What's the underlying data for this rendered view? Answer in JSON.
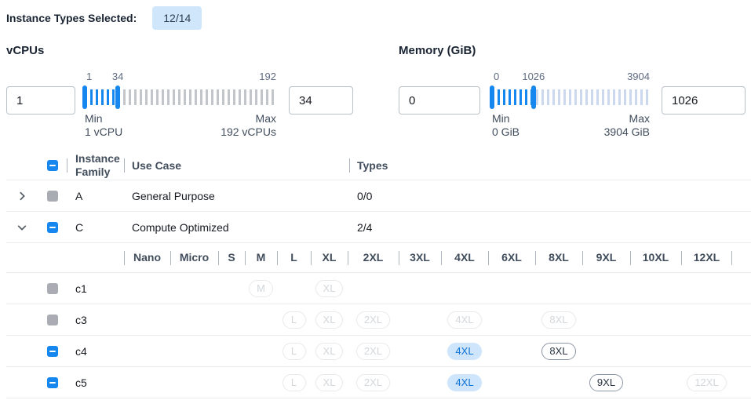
{
  "colors": {
    "accent": "#1787f0",
    "selected-badge-bg": "#cfe5fb",
    "selected-badge-text": "#0d72d3",
    "count-badge-bg": "#cfe6fb",
    "disabled-checkbox": "#a9adb3"
  },
  "topbar": {
    "label": "Instance Types Selected:",
    "count_badge": "12/14"
  },
  "filters": {
    "vcpus": {
      "title": "vCPUs",
      "range": {
        "min": 1,
        "max": 192
      },
      "values": {
        "from": 1,
        "to": 34
      },
      "min_label": "Min",
      "min_sublabel": "1 vCPU",
      "max_label": "Max",
      "max_sublabel": "192 vCPUs"
    },
    "memory": {
      "title": "Memory (GiB)",
      "range": {
        "min": 0,
        "max": 3904
      },
      "values": {
        "from": 0,
        "to": 1026
      },
      "min_label": "Min",
      "min_sublabel": "0 GiB",
      "max_label": "Max",
      "max_sublabel": "3904 GiB"
    }
  },
  "table": {
    "header_checkbox_state": "indeterminate",
    "columns": [
      "Instance Family",
      "Use Case",
      "Types"
    ],
    "size_columns": [
      "Nano",
      "Micro",
      "S",
      "M",
      "L",
      "XL",
      "2XL",
      "3XL",
      "4XL",
      "6XL",
      "8XL",
      "9XL",
      "10XL",
      "12XL"
    ],
    "family_rows": [
      {
        "family": "A",
        "use_case": "General Purpose",
        "types_count": "0/0",
        "checkbox_state": "disabled",
        "expanded": false
      },
      {
        "family": "C",
        "use_case": "Compute Optimized",
        "types_count": "2/4",
        "checkbox_state": "indeterminate",
        "expanded": true
      }
    ],
    "type_rows": [
      {
        "name": "c1",
        "checkbox_state": "disabled",
        "badges": [
          {
            "size": "M",
            "state": "disabled"
          },
          {
            "size": "XL",
            "state": "disabled"
          }
        ]
      },
      {
        "name": "c3",
        "checkbox_state": "disabled",
        "badges": [
          {
            "size": "L",
            "state": "disabled"
          },
          {
            "size": "XL",
            "state": "disabled"
          },
          {
            "size": "2XL",
            "state": "disabled"
          },
          {
            "size": "4XL",
            "state": "disabled"
          },
          {
            "size": "8XL",
            "state": "disabled"
          }
        ]
      },
      {
        "name": "c4",
        "checkbox_state": "indeterminate",
        "badges": [
          {
            "size": "L",
            "state": "disabled"
          },
          {
            "size": "XL",
            "state": "disabled"
          },
          {
            "size": "2XL",
            "state": "disabled"
          },
          {
            "size": "4XL",
            "state": "selected"
          },
          {
            "size": "8XL",
            "state": "unselected"
          }
        ]
      },
      {
        "name": "c5",
        "checkbox_state": "indeterminate",
        "badges": [
          {
            "size": "L",
            "state": "disabled"
          },
          {
            "size": "XL",
            "state": "disabled"
          },
          {
            "size": "2XL",
            "state": "disabled"
          },
          {
            "size": "4XL",
            "state": "selected"
          },
          {
            "size": "9XL",
            "state": "unselected"
          },
          {
            "size": "12XL",
            "state": "disabled"
          }
        ]
      }
    ]
  }
}
